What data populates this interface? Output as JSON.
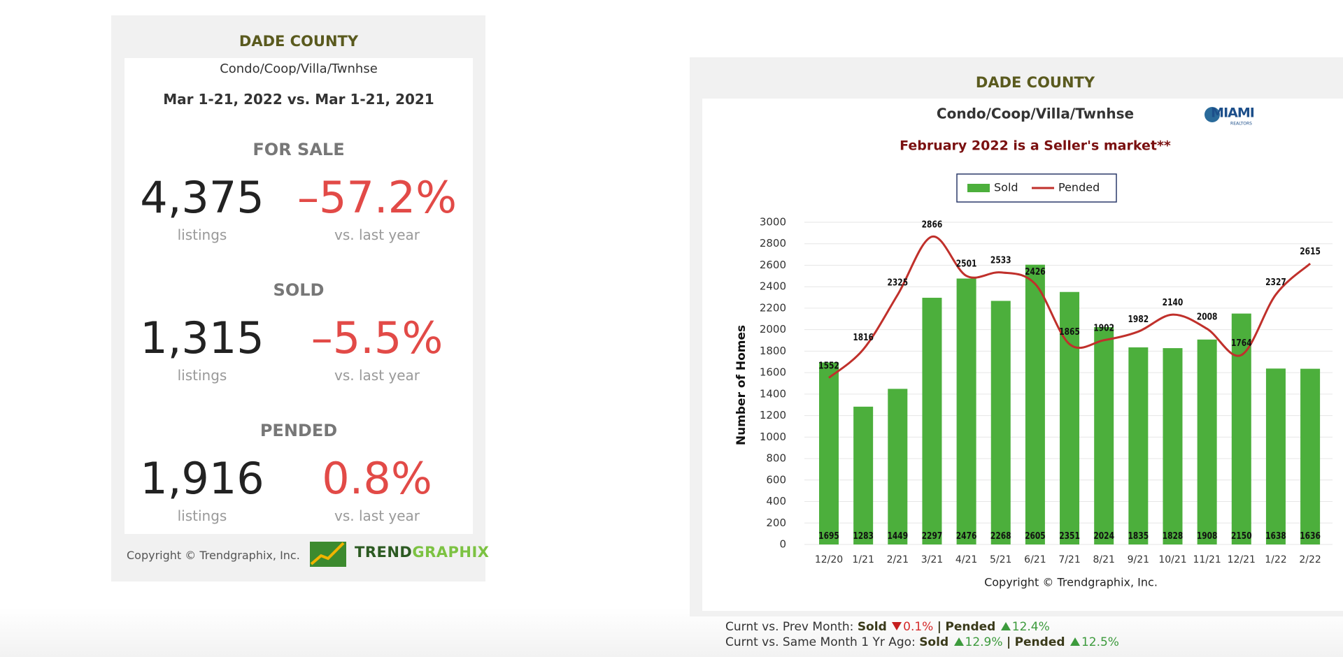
{
  "stats_widget": {
    "title": "DADE COUNTY",
    "property_type": "Condo/Coop/Villa/Twnhse",
    "period": "Mar 1-21, 2022 vs. Mar 1-21, 2021",
    "sections": [
      {
        "heading": "FOR SALE",
        "count": "4,375",
        "count_label": "listings",
        "change": "–57.2%",
        "change_label": "vs. last year"
      },
      {
        "heading": "SOLD",
        "count": "1,315",
        "count_label": "listings",
        "change": "–5.5%",
        "change_label": "vs. last year"
      },
      {
        "heading": "PENDED",
        "count": "1,916",
        "count_label": "listings",
        "change": "0.8%",
        "change_label": "vs. last year"
      }
    ],
    "copyright": "Copyright © Trendgraphix, Inc.",
    "logo": [
      "TREND",
      "GRAPHIX"
    ]
  },
  "chart_data": {
    "type": "bar_line",
    "title": "DADE COUNTY",
    "subtitle": "Condo/Coop/Villa/Twnhse",
    "annotation": "February 2022 is a Seller's market**",
    "logo": [
      "MIAMI",
      "REALTORS"
    ],
    "y_label": "Number of Homes",
    "copyright": "Copyright © Trendgraphix, Inc.",
    "categories": [
      "12/20",
      "1/21",
      "2/21",
      "3/21",
      "4/21",
      "5/21",
      "6/21",
      "7/21",
      "8/21",
      "9/21",
      "10/21",
      "11/21",
      "12/21",
      "1/22",
      "2/22"
    ],
    "series": [
      {
        "name": "Sold",
        "type": "bar",
        "color": "#4caf3c",
        "values": [
          1695,
          1283,
          1449,
          2297,
          2476,
          2268,
          2605,
          2351,
          2024,
          1835,
          1828,
          1908,
          2150,
          1638,
          1636
        ]
      },
      {
        "name": "Pended",
        "type": "line",
        "color": "#c0302b",
        "values": [
          1552,
          1816,
          2325,
          2866,
          2501,
          2533,
          2426,
          1865,
          1902,
          1982,
          2140,
          2008,
          1764,
          2327,
          2615
        ]
      }
    ],
    "ylim": [
      0,
      3000
    ],
    "yticks": [
      0,
      200,
      400,
      600,
      800,
      1000,
      1200,
      1400,
      1600,
      1800,
      2000,
      2200,
      2400,
      2600,
      2800,
      3000
    ],
    "grid": true,
    "legend": "top"
  },
  "chart_footer": [
    {
      "label": "Curnt vs. Prev Month:",
      "sold_label": "Sold",
      "sold_direction": "down",
      "sold_change": "0.1%",
      "separator": "|",
      "pended_label": "Pended",
      "pended_direction": "up",
      "pended_change": "12.4%"
    },
    {
      "label": "Curnt vs. Same Month 1 Yr Ago:",
      "sold_label": "Sold",
      "sold_direction": "up",
      "sold_change": "12.9%",
      "separator": "|",
      "pended_label": "Pended",
      "pended_direction": "up",
      "pended_change": "12.5%"
    }
  ]
}
